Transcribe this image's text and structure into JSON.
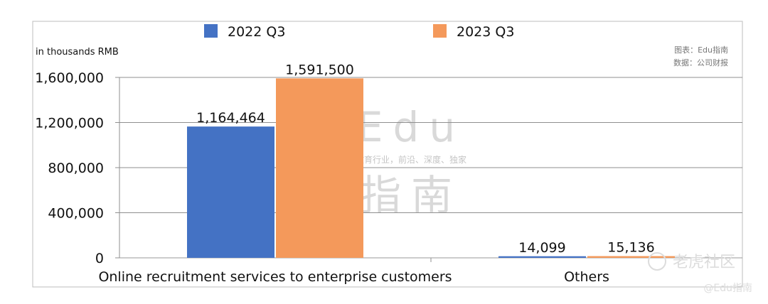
{
  "chart_data": {
    "type": "bar",
    "categories": [
      "Online recruitment services to enterprise customers",
      "Others"
    ],
    "series": [
      {
        "name": "2022 Q3",
        "values": [
          1164464,
          14099
        ],
        "labels": [
          "1,164,464",
          "14,099"
        ],
        "color": "#4472C4"
      },
      {
        "name": "2023 Q3",
        "values": [
          1591500,
          15136
        ],
        "labels": [
          "1,591,500",
          "15,136"
        ],
        "color": "#F4995B"
      }
    ],
    "unit_label": "in thousands RMB",
    "ylim": [
      0,
      1600000
    ],
    "yticks": [
      0,
      400000,
      800000,
      1200000,
      1600000
    ],
    "ytick_labels": [
      "0",
      "400,000",
      "800,000",
      "1,200,000",
      "1,600,000"
    ],
    "grid": true,
    "legend_position": "top"
  },
  "source_note": [
    "图表：Edu指南",
    "数据：公司财报"
  ],
  "watermark": {
    "big_top": "Edu",
    "slogan": "教育行业，前沿、深度、独家",
    "big_bottom": "指南",
    "corner_brand": "老虎社区",
    "corner_handle": "@Edu指南"
  }
}
